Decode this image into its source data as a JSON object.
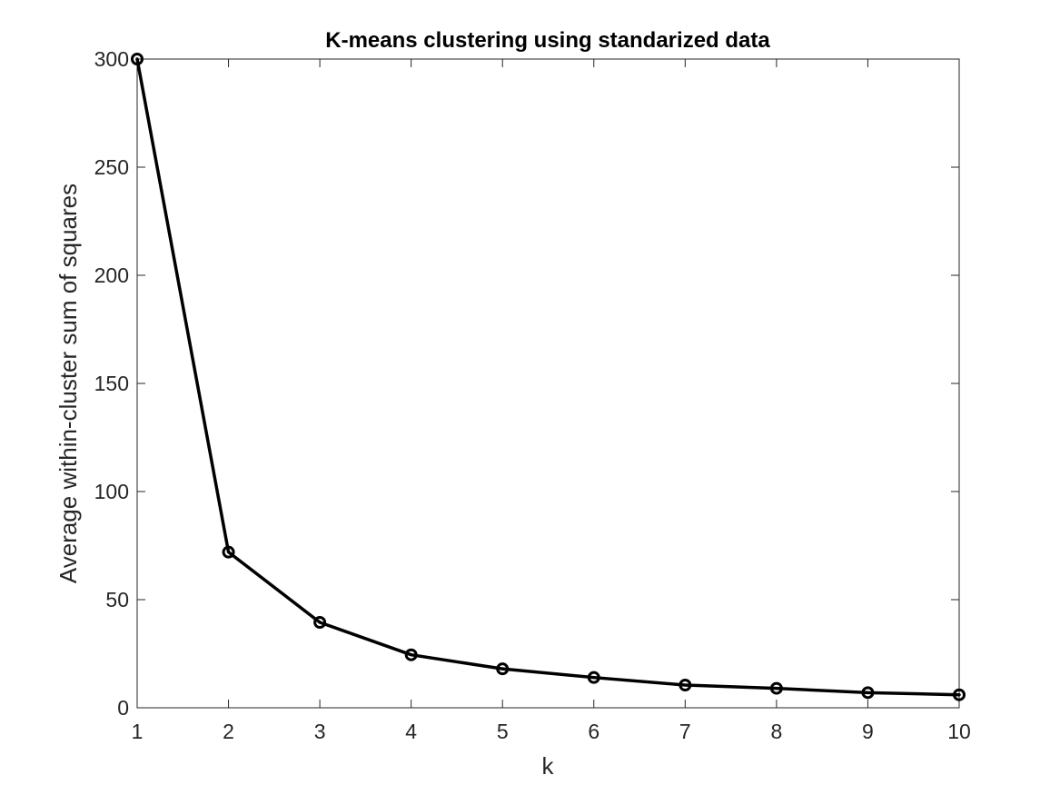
{
  "chart_data": {
    "type": "line",
    "title": "K-means clustering using standarized data",
    "xlabel": "k",
    "ylabel": "Average within-cluster sum of squares",
    "xlim": [
      1,
      10
    ],
    "ylim": [
      0,
      300
    ],
    "xticks": [
      1,
      2,
      3,
      4,
      5,
      6,
      7,
      8,
      9,
      10
    ],
    "yticks": [
      0,
      50,
      100,
      150,
      200,
      250,
      300
    ],
    "grid": false,
    "legend": "none",
    "series": [
      {
        "x": [
          1,
          2,
          3,
          4,
          5,
          6,
          7,
          8,
          9,
          10
        ],
        "y": [
          300,
          72,
          39.5,
          24.5,
          18,
          14,
          10.5,
          9,
          7,
          6
        ],
        "color": "#000000",
        "marker": "circle"
      }
    ]
  }
}
